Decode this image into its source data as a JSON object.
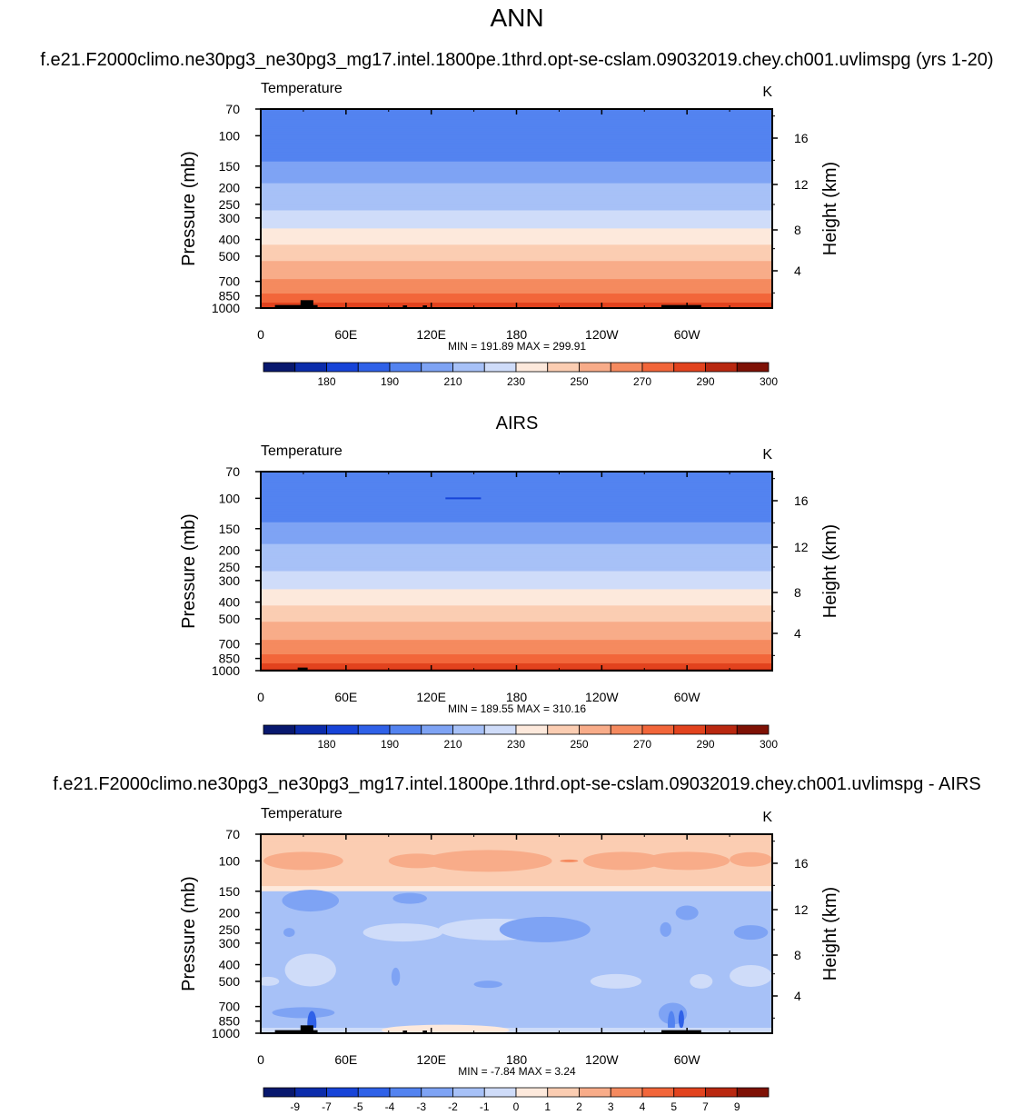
{
  "page": {
    "title": "ANN",
    "case_title": "f.e21.F2000climo.ne30pg3_ne30pg3_mg17.intel.1800pe.1thrd.opt-se-cslam.09032019.chey.ch001.uvlimspg (yrs 1-20)",
    "obs_title": "AIRS",
    "diff_title": "f.e21.F2000climo.ne30pg3_ne30pg3_mg17.intel.1800pe.1thrd.opt-se-cslam.09032019.chey.ch001.uvlimspg - AIRS"
  },
  "colors": {
    "temp_palette": [
      "#08186e",
      "#0b2cab",
      "#1744d8",
      "#2f61e8",
      "#5383f0",
      "#7ea3f4",
      "#a7c1f7",
      "#cfdcf9",
      "#fde9dc",
      "#fbcdb2",
      "#f8ac89",
      "#f58a5f",
      "#f2663a",
      "#e2431e",
      "#b92810",
      "#7e1105"
    ],
    "diff_palette": [
      "#08186e",
      "#0b2cab",
      "#1744d8",
      "#2f61e8",
      "#5383f0",
      "#7ea3f4",
      "#a7c1f7",
      "#cfdcf9",
      "#fde9dc",
      "#fbcdb2",
      "#f8ac89",
      "#f58a5f",
      "#f2663a",
      "#e2431e",
      "#b92810",
      "#7e1105"
    ],
    "terrain": "#000000"
  },
  "chart_data": [
    {
      "type": "contour",
      "panel": "model",
      "left_label": "Temperature",
      "units": "K",
      "ylabel": "Pressure (mb)",
      "ylabel_right": "Height (km)",
      "x_ticks": [
        "0",
        "60E",
        "120E",
        "180",
        "120W",
        "60W"
      ],
      "x_tick_lons": [
        0,
        60,
        120,
        180,
        240,
        300
      ],
      "xlim": [
        0,
        360
      ],
      "y_ticks": [
        "70",
        "100",
        "150",
        "200",
        "250",
        "300",
        "400",
        "500",
        "700",
        "850",
        "1000"
      ],
      "y_tick_values": [
        70,
        100,
        150,
        200,
        250,
        300,
        400,
        500,
        700,
        850,
        1000
      ],
      "ylim": [
        70,
        1000
      ],
      "right_ticks": [
        "16",
        "12",
        "8",
        "4"
      ],
      "right_tick_values": [
        16,
        12,
        8,
        4
      ],
      "stats": "MIN = 191.89  MAX = 299.91",
      "colorbar_labels": [
        "180",
        "190",
        "210",
        "230",
        "250",
        "270",
        "290",
        "300"
      ],
      "levels": [
        175,
        180,
        185,
        190,
        200,
        210,
        220,
        230,
        240,
        250,
        260,
        270,
        280,
        290,
        295,
        300
      ],
      "profile": [
        [
          70,
          191
        ],
        [
          100,
          193
        ],
        [
          130,
          197
        ],
        [
          150,
          203
        ],
        [
          190,
          210
        ],
        [
          240,
          216
        ],
        [
          290,
          222
        ],
        [
          360,
          232
        ],
        [
          420,
          239
        ],
        [
          500,
          247
        ],
        [
          600,
          255
        ],
        [
          700,
          262
        ],
        [
          800,
          268
        ],
        [
          880,
          274
        ],
        [
          950,
          281
        ],
        [
          1000,
          289
        ]
      ]
    },
    {
      "type": "contour",
      "panel": "obs",
      "left_label": "Temperature",
      "units": "K",
      "ylabel": "Pressure (mb)",
      "ylabel_right": "Height (km)",
      "x_ticks": [
        "0",
        "60E",
        "120E",
        "180",
        "120W",
        "60W"
      ],
      "x_tick_lons": [
        0,
        60,
        120,
        180,
        240,
        300
      ],
      "xlim": [
        0,
        360
      ],
      "y_ticks": [
        "70",
        "100",
        "150",
        "200",
        "250",
        "300",
        "400",
        "500",
        "700",
        "850",
        "1000"
      ],
      "y_tick_values": [
        70,
        100,
        150,
        200,
        250,
        300,
        400,
        500,
        700,
        850,
        1000
      ],
      "ylim": [
        70,
        1000
      ],
      "right_ticks": [
        "16",
        "12",
        "8",
        "4"
      ],
      "right_tick_values": [
        16,
        12,
        8,
        4
      ],
      "stats": "MIN = 189.55  MAX = 310.16",
      "colorbar_labels": [
        "180",
        "190",
        "210",
        "230",
        "250",
        "270",
        "290",
        "300"
      ],
      "levels": [
        175,
        180,
        185,
        190,
        200,
        210,
        220,
        230,
        240,
        250,
        260,
        270,
        280,
        290,
        295,
        300
      ],
      "profile": [
        [
          70,
          192
        ],
        [
          100,
          194
        ],
        [
          130,
          198
        ],
        [
          150,
          204
        ],
        [
          190,
          211
        ],
        [
          240,
          217
        ],
        [
          290,
          223
        ],
        [
          360,
          233
        ],
        [
          420,
          240
        ],
        [
          500,
          248
        ],
        [
          600,
          256
        ],
        [
          700,
          263
        ],
        [
          800,
          270
        ],
        [
          880,
          277
        ],
        [
          950,
          285
        ],
        [
          1000,
          294
        ]
      ]
    },
    {
      "type": "contour",
      "panel": "difference",
      "left_label": "Temperature",
      "units": "K",
      "ylabel": "Pressure (mb)",
      "ylabel_right": "Height (km)",
      "x_ticks": [
        "0",
        "60E",
        "120E",
        "180",
        "120W",
        "60W"
      ],
      "x_tick_lons": [
        0,
        60,
        120,
        180,
        240,
        300
      ],
      "xlim": [
        0,
        360
      ],
      "y_ticks": [
        "70",
        "100",
        "150",
        "200",
        "250",
        "300",
        "400",
        "500",
        "700",
        "850",
        "1000"
      ],
      "y_tick_values": [
        70,
        100,
        150,
        200,
        250,
        300,
        400,
        500,
        700,
        850,
        1000
      ],
      "ylim": [
        70,
        1000
      ],
      "right_ticks": [
        "16",
        "12",
        "8",
        "4"
      ],
      "right_tick_values": [
        16,
        12,
        8,
        4
      ],
      "stats": "MIN =  -7.84  MAX =   3.24",
      "colorbar_labels": [
        "-9",
        "-7",
        "-5",
        "-4",
        "-3",
        "-2",
        "-1",
        "0",
        "1",
        "2",
        "3",
        "4",
        "5",
        "7",
        "9"
      ],
      "levels": [
        -9,
        -7,
        -5,
        -4,
        -3,
        -2,
        -1,
        0,
        1,
        2,
        3,
        4,
        5,
        7,
        9
      ]
    }
  ]
}
